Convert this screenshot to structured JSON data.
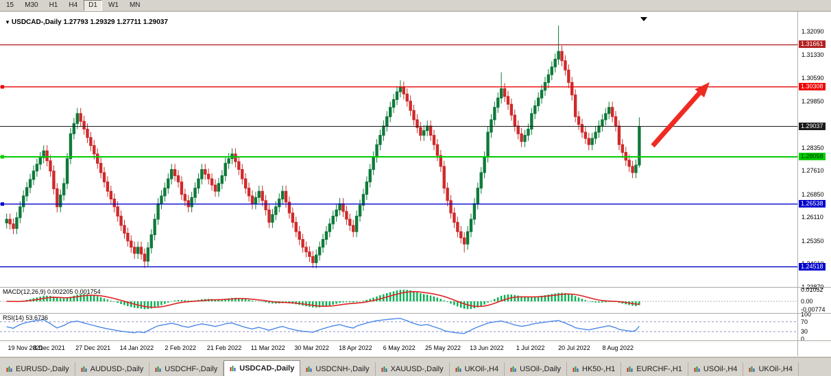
{
  "toolbar": {
    "timeframes": [
      {
        "label": "15",
        "active": false
      },
      {
        "label": "M30",
        "active": false
      },
      {
        "label": "H1",
        "active": false
      },
      {
        "label": "H4",
        "active": false
      },
      {
        "label": "D1",
        "active": true
      },
      {
        "label": "W1",
        "active": false
      },
      {
        "label": "MN",
        "active": false
      }
    ]
  },
  "chart": {
    "title": {
      "symbol": "USDCAD-,Daily",
      "open": "1.27793",
      "high": "1.29329",
      "low": "1.27711",
      "close": "1.29037"
    }
  },
  "chart_data": {
    "type": "candlestick",
    "symbol": "USDCAD-",
    "timeframe": "Daily",
    "current_bar": {
      "open": 1.27793,
      "high": 1.29329,
      "low": 1.27711,
      "close": 1.29037
    },
    "y_range": [
      1.2387,
      1.3209
    ],
    "y_ticks": [
      "1.32090",
      "1.31330",
      "1.30590",
      "1.29850",
      "1.28350",
      "1.27610",
      "1.26850",
      "1.26110",
      "1.25350",
      "1.24610",
      "1.23870"
    ],
    "y_tick_values": [
      1.3209,
      1.3133,
      1.3059,
      1.2985,
      1.2835,
      1.2761,
      1.2685,
      1.2611,
      1.2535,
      1.2461,
      1.2387
    ],
    "x_labels": [
      "19 Nov 2021",
      "8 Dec 2021",
      "27 Dec 2021",
      "14 Jan 2022",
      "2 Feb 2022",
      "21 Feb 2022",
      "11 Mar 2022",
      "30 Mar 2022",
      "18 Apr 2022",
      "6 May 2022",
      "25 May 2022",
      "13 Jun 2022",
      "1 Jul 2022",
      "20 Jul 2022",
      "8 Aug 2022"
    ],
    "x_label_bar_step": 13,
    "colors": {
      "bull": "#0e7a3a",
      "bear": "#cf2a2a",
      "background": "#ffffff",
      "axis_text": "#000000"
    },
    "hlines": [
      {
        "price": 1.31661,
        "label": "1.31661",
        "color": "#b22222",
        "text_color": "#ffffff",
        "width": 1.4,
        "anchor_marker": false
      },
      {
        "price": 1.30308,
        "label": "1.30308",
        "color": "#ee0000",
        "text_color": "#ffffff",
        "width": 1.4,
        "anchor_marker": true
      },
      {
        "price": 1.29037,
        "label": "1.29037",
        "color": "#1a1a1a",
        "text_color": "#ffffff",
        "width": 1,
        "anchor_marker": false
      },
      {
        "price": 1.28058,
        "label": "1.28058",
        "color": "#00cc00",
        "text_color": "#003300",
        "width": 2,
        "anchor_marker": true
      },
      {
        "price": 1.26538,
        "label": "1.26538",
        "color": "#0000cc",
        "text_color": "#ffffff",
        "width": 1.4,
        "anchor_marker": true
      },
      {
        "price": 1.24518,
        "label": "1.24518",
        "color": "#0000cc",
        "text_color": "#ffffff",
        "width": 1.4,
        "anchor_marker": false
      }
    ],
    "closes": [
      1.2605,
      1.259,
      1.2575,
      1.261,
      1.2645,
      1.268,
      1.2707,
      1.2733,
      1.276,
      1.2782,
      1.2803,
      1.2825,
      1.2793,
      1.276,
      1.2703,
      1.2645,
      1.2683,
      1.272,
      1.28,
      1.288,
      1.2913,
      1.2945,
      1.292,
      1.2895,
      1.2868,
      1.2842,
      1.2815,
      1.2785,
      1.2755,
      1.2725,
      1.2695,
      1.267,
      1.2645,
      1.2615,
      1.2585,
      1.256,
      1.2535,
      1.2515,
      1.2495,
      1.2515,
      1.2493,
      1.247,
      1.2513,
      1.2555,
      1.2605,
      1.2655,
      1.268,
      1.2705,
      1.2735,
      1.2765,
      1.2745,
      1.2725,
      1.2685,
      1.2665,
      1.2645,
      1.2675,
      1.2705,
      1.2735,
      1.2765,
      1.275,
      1.2735,
      1.2715,
      1.2695,
      1.272,
      1.2745,
      1.2785,
      1.28,
      1.2815,
      1.279,
      1.2765,
      1.2735,
      1.2705,
      1.268,
      1.2655,
      1.2675,
      1.2695,
      1.2665,
      1.2635,
      1.2595,
      1.262,
      1.2645,
      1.267,
      1.2695,
      1.266,
      1.2625,
      1.2595,
      1.2565,
      1.254,
      1.2515,
      1.25,
      1.2485,
      1.2465,
      1.249,
      1.2515,
      1.254,
      1.2565,
      1.259,
      1.2615,
      1.2635,
      1.2655,
      1.263,
      1.2605,
      1.2585,
      1.2565,
      1.2615,
      1.265,
      1.2685,
      1.2725,
      1.2765,
      1.2805,
      1.2845,
      1.2875,
      1.2905,
      1.2935,
      1.2965,
      1.299,
      1.3015,
      1.303,
      1.3008,
      1.2985,
      1.2955,
      1.2925,
      1.29,
      1.2875,
      1.289,
      1.2905,
      1.2875,
      1.2845,
      1.281,
      1.2775,
      1.2705,
      1.2665,
      1.2625,
      1.2595,
      1.2565,
      1.2545,
      1.2525,
      1.2565,
      1.2605,
      1.2655,
      1.2705,
      1.2755,
      1.2805,
      1.2885,
      1.2925,
      1.2965,
      1.2995,
      1.3025,
      1.3,
      1.2975,
      1.294,
      1.2905,
      1.288,
      1.2855,
      1.2875,
      1.2895,
      1.2945,
      1.297,
      1.2995,
      1.302,
      1.3045,
      1.307,
      1.3095,
      1.312,
      1.3145,
      1.3115,
      1.3085,
      1.3045,
      1.3005,
      1.2935,
      1.291,
      1.2885,
      1.2865,
      1.2845,
      1.2865,
      1.2885,
      1.2905,
      1.2925,
      1.2945,
      1.2965,
      1.2935,
      1.2905,
      1.2845,
      1.282,
      1.2795,
      1.2775,
      1.2755,
      1.27793,
      1.29037
    ],
    "overrides": {
      "41": {
        "l": 1.2448
      },
      "91": {
        "l": 1.2448
      },
      "117": {
        "h": 1.3052
      },
      "136": {
        "l": 1.2498
      },
      "147": {
        "h": 1.3078
      },
      "164": {
        "h": 1.3228
      },
      "188": {
        "o": 1.27793,
        "h": 1.29329,
        "l": 1.27711,
        "c": 1.29037
      }
    },
    "macd_panel": {
      "label": "MACD(12,26,9) 0.002205 0.001754",
      "params": [
        12,
        26,
        9
      ],
      "values": [
        "0.002205",
        "0.001754"
      ],
      "axis_labels": [
        "0.01052",
        "0.00",
        "-0.00774"
      ],
      "axis_values": [
        0.01052,
        0.0,
        -0.00774
      ],
      "histogram_color": "#00b050",
      "signal_color": "#dd2222"
    },
    "rsi_panel": {
      "label": "RSI(14) 53.6736",
      "period": 14,
      "value": "53.6736",
      "axis_labels": [
        "100",
        "70",
        "30",
        "0"
      ],
      "axis_values": [
        100,
        70,
        30,
        0
      ],
      "levels": [
        70,
        30
      ],
      "line_color": "#4a86e8",
      "level_color": "#9093c8"
    },
    "annotations": [
      {
        "type": "arrow-up-right",
        "color": "#ee2b22"
      }
    ]
  },
  "tabs": [
    {
      "label": "EURUSD-,Daily",
      "active": false
    },
    {
      "label": "AUDUSD-,Daily",
      "active": false
    },
    {
      "label": "USDCHF-,Daily",
      "active": false
    },
    {
      "label": "USDCAD-,Daily",
      "active": true
    },
    {
      "label": "USDCNH-,Daily",
      "active": false
    },
    {
      "label": "XAUUSD-,Daily",
      "active": false
    },
    {
      "label": "UKOil-,H4",
      "active": false
    },
    {
      "label": "USOil-,Daily",
      "active": false
    },
    {
      "label": "HK50-,H1",
      "active": false
    },
    {
      "label": "EURCHF-,H1",
      "active": false
    },
    {
      "label": "USOil-,H4",
      "active": false
    },
    {
      "label": "UKOil-,H4",
      "active": false
    }
  ]
}
